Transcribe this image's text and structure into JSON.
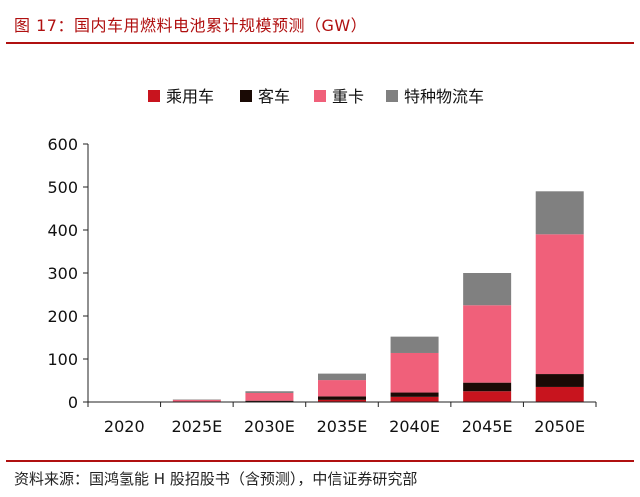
{
  "figure": {
    "title": "图 17：国内车用燃料电池累计规模预测（GW）",
    "source": "资料来源：国鸿氢能 H 股招股书（含预测），中信证券研究部"
  },
  "chart_data": {
    "type": "bar",
    "stacked": true,
    "title": "国内车用燃料电池累计规模预测（GW）",
    "xlabel": "",
    "ylabel": "",
    "categories": [
      "2020",
      "2025E",
      "2030E",
      "2035E",
      "2040E",
      "2045E",
      "2050E"
    ],
    "ylim": [
      0,
      600
    ],
    "yticks": [
      0,
      100,
      200,
      300,
      400,
      500,
      600
    ],
    "grid": false,
    "legend_position": "top",
    "series": [
      {
        "name": "乘用车",
        "color": "#c8141e",
        "values": [
          0,
          0,
          1,
          5,
          12,
          25,
          35
        ]
      },
      {
        "name": "客车",
        "color": "#1a0a05",
        "values": [
          0.5,
          1,
          2,
          8,
          10,
          20,
          30
        ]
      },
      {
        "name": "重卡",
        "color": "#f0607a",
        "values": [
          0.5,
          4,
          18,
          38,
          92,
          180,
          325
        ]
      },
      {
        "name": "特种物流车",
        "color": "#808080",
        "values": [
          0,
          1,
          4,
          15,
          38,
          75,
          100
        ]
      }
    ]
  }
}
